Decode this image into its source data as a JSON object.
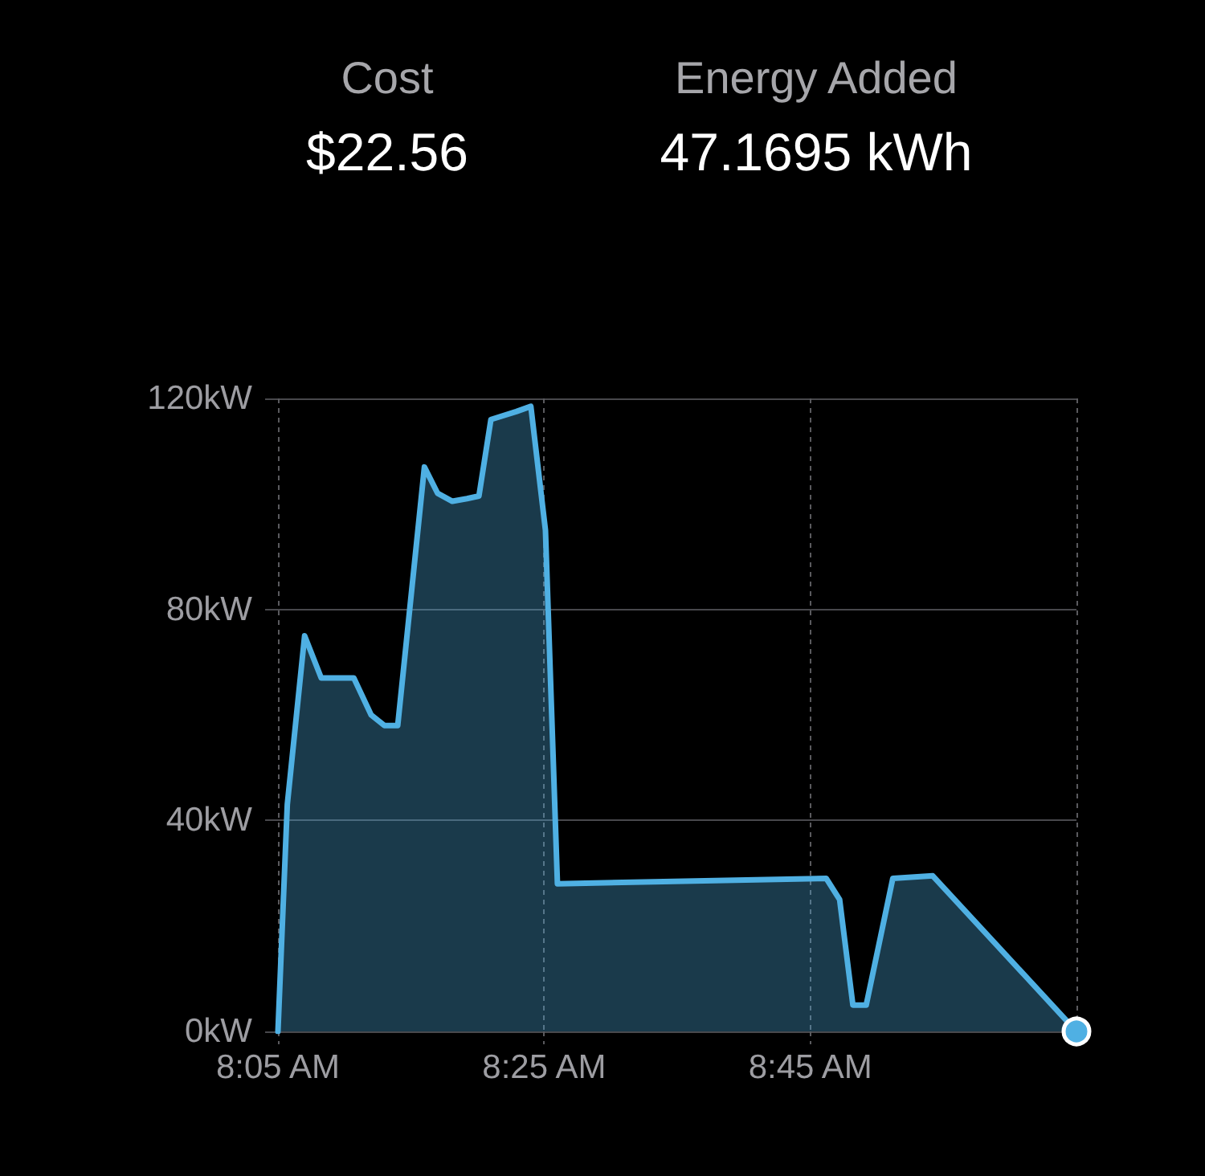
{
  "chart_data": {
    "type": "area",
    "annotations": [
      "Cost",
      "$22.56",
      "Energy Added",
      "47.1695 kWh"
    ],
    "x": [
      8.0833,
      8.095,
      8.1167,
      8.1375,
      8.1783,
      8.2,
      8.2167,
      8.2333,
      8.2667,
      8.2833,
      8.3017,
      8.32,
      8.335,
      8.35,
      8.3817,
      8.4,
      8.4183,
      8.4333,
      8.77,
      8.7867,
      8.8033,
      8.82,
      8.8533,
      8.9033,
      9.0833
    ],
    "xlim": [
      8.0833,
      9.0833
    ],
    "xticks": [
      {
        "value": 8.0833,
        "label": "8:05 AM"
      },
      {
        "value": 8.4167,
        "label": "8:25 AM"
      },
      {
        "value": 8.75,
        "label": "8:45 AM"
      },
      {
        "value": 9.0833,
        "label": null
      }
    ],
    "ylim": [
      0,
      120
    ],
    "yticks": [
      {
        "value": 0,
        "label": "0kW"
      },
      {
        "value": 40,
        "label": "40kW"
      },
      {
        "value": 80,
        "label": "80kW"
      },
      {
        "value": 120,
        "label": "120kW"
      }
    ],
    "grid": true,
    "series": [
      {
        "color": "#4fb0e3",
        "values": [
          0,
          43,
          75,
          67,
          67,
          60,
          58,
          58,
          107,
          102,
          100.5,
          101,
          101.5,
          116,
          117.5,
          118.5,
          95,
          28,
          29,
          25,
          5,
          5,
          29,
          29.5,
          0
        ]
      },
      {
        "type": "scatter",
        "x": [
          9.0833
        ],
        "values": [
          0
        ],
        "color": "#4fb0e3",
        "marker": "circle"
      }
    ]
  }
}
